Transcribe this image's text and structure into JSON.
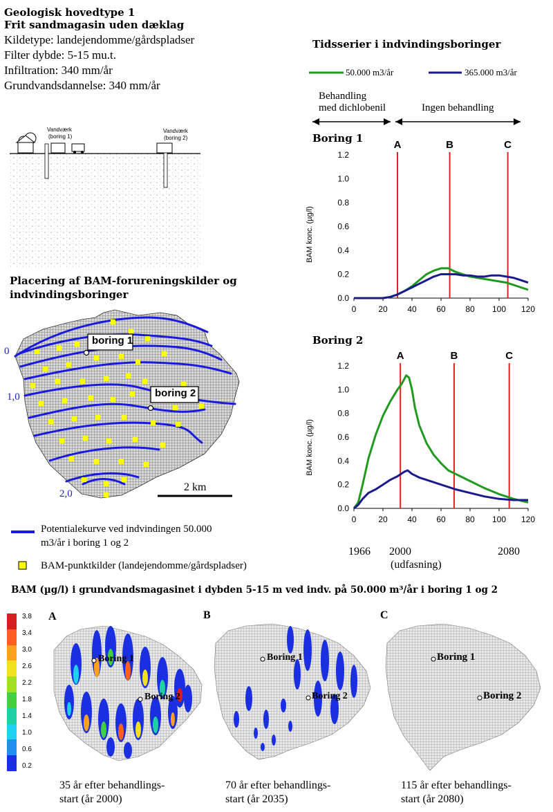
{
  "header": {
    "title1": "Geologisk hovedtype 1",
    "title2": "Frit sandmagasin uden dæklag",
    "line1": "Kildetype: landejendomme/gårdspladser",
    "line2": "Filter dybde: 5-15 mu.t.",
    "line3": "Infiltration: 340 mm/år",
    "line4": "Grundvandsdannelse: 340 mm/år"
  },
  "profile": {
    "well1_label": "Vandværk",
    "well1_sub": "(boring 1)",
    "well2_label": "Vandværk",
    "well2_sub": "(boring 2)"
  },
  "map": {
    "heading1": "Placering af BAM-forureningskilder og",
    "heading2": "indvindingsboringer",
    "boring1_label": "boring 1",
    "boring2_label": "boring 2",
    "contour_labels": [
      "0",
      "1,0",
      "2,0"
    ],
    "scale_label": "2 km",
    "legend_line": "Potentialekurve ved indvindingen 50.000",
    "legend_line2": "m3/år i boring 1 og 2",
    "legend_point": "BAM-punktkilder (landejendomme/gårdspladser)",
    "colors": {
      "contour": "#1a1adc",
      "source": "#ffff00",
      "grid": "#8a8a8a"
    }
  },
  "timeseries": {
    "heading": "Tidsserier i indvindingsboringer",
    "legend": [
      {
        "label": "50.000 m3/år",
        "color": "#1f9a1f"
      },
      {
        "label": "365.000 m3/år",
        "color": "#1a1a8c"
      }
    ],
    "phase1_line1": "Behandling",
    "phase1_line2": "med dichlobenil",
    "phase2": "Ingen behandling",
    "marker_color": "#e02020",
    "x_bottom": [
      "1966",
      "2000",
      "2080"
    ],
    "x_bottom_sub": "(udfasning)"
  },
  "chart_data": [
    {
      "type": "line",
      "title": "Boring 1",
      "ylabel": "BAM konc. (µg/l)",
      "xlim": [
        0,
        120
      ],
      "ylim": [
        0,
        1.2
      ],
      "xticks": [
        0,
        20,
        40,
        60,
        80,
        100,
        120
      ],
      "yticks": [
        0.0,
        0.2,
        0.4,
        0.6,
        0.8,
        1.0,
        1.2
      ],
      "ytick_labels": [
        "0.0",
        "0.2",
        "0.4",
        "0.6",
        "0.8",
        "1.0",
        "1.2"
      ],
      "markers": [
        {
          "label": "A",
          "x": 30
        },
        {
          "label": "B",
          "x": 66
        },
        {
          "label": "C",
          "x": 106
        }
      ],
      "series": [
        {
          "name": "50.000 m3/år",
          "color": "#1f9a1f",
          "x": [
            0,
            10,
            20,
            25,
            30,
            35,
            40,
            45,
            50,
            55,
            60,
            65,
            70,
            75,
            80,
            85,
            90,
            95,
            100,
            105,
            110,
            115,
            120
          ],
          "y": [
            0,
            0,
            0,
            0.01,
            0.03,
            0.06,
            0.1,
            0.15,
            0.2,
            0.23,
            0.25,
            0.25,
            0.22,
            0.2,
            0.18,
            0.17,
            0.16,
            0.15,
            0.14,
            0.13,
            0.11,
            0.09,
            0.07
          ]
        },
        {
          "name": "365.000 m3/år",
          "color": "#1a1a8c",
          "x": [
            0,
            10,
            20,
            25,
            30,
            35,
            40,
            45,
            50,
            55,
            60,
            65,
            70,
            75,
            80,
            85,
            90,
            95,
            100,
            105,
            110,
            115,
            120
          ],
          "y": [
            0,
            0,
            0,
            0.01,
            0.03,
            0.06,
            0.09,
            0.12,
            0.15,
            0.18,
            0.2,
            0.2,
            0.2,
            0.19,
            0.19,
            0.18,
            0.18,
            0.19,
            0.19,
            0.18,
            0.17,
            0.15,
            0.13
          ]
        }
      ]
    },
    {
      "type": "line",
      "title": "Boring 2",
      "ylabel": "BAM konc. (µg/l)",
      "xlim": [
        0,
        120
      ],
      "ylim": [
        0,
        1.2
      ],
      "xticks": [
        0,
        20,
        40,
        60,
        80,
        100,
        120
      ],
      "yticks": [
        0.0,
        0.2,
        0.4,
        0.6,
        0.8,
        1.0,
        1.2
      ],
      "ytick_labels": [
        "0.0",
        "0.2",
        "0.4",
        "0.6",
        "0.8",
        "1.0",
        "1.2"
      ],
      "markers": [
        {
          "label": "A",
          "x": 32
        },
        {
          "label": "B",
          "x": 69
        },
        {
          "label": "C",
          "x": 107
        }
      ],
      "series": [
        {
          "name": "50.000 m3/år",
          "color": "#1f9a1f",
          "x": [
            0,
            3,
            6,
            10,
            15,
            20,
            25,
            30,
            33,
            36,
            38,
            40,
            42,
            45,
            50,
            55,
            60,
            65,
            70,
            75,
            80,
            90,
            100,
            110,
            120
          ],
          "y": [
            0,
            0.05,
            0.2,
            0.42,
            0.62,
            0.78,
            0.9,
            1.0,
            1.05,
            1.12,
            1.1,
            1.0,
            0.85,
            0.7,
            0.55,
            0.45,
            0.38,
            0.32,
            0.29,
            0.26,
            0.23,
            0.17,
            0.12,
            0.08,
            0.05
          ]
        },
        {
          "name": "365.000 m3/år",
          "color": "#1a1a8c",
          "x": [
            0,
            3,
            6,
            10,
            15,
            20,
            25,
            30,
            35,
            37,
            40,
            45,
            50,
            55,
            60,
            70,
            80,
            90,
            100,
            110,
            120
          ],
          "y": [
            0,
            0.03,
            0.08,
            0.13,
            0.16,
            0.2,
            0.24,
            0.27,
            0.31,
            0.32,
            0.29,
            0.26,
            0.24,
            0.22,
            0.2,
            0.16,
            0.13,
            0.1,
            0.08,
            0.07,
            0.07
          ]
        }
      ]
    }
  ],
  "bottom": {
    "title": "BAM (µg/l) i grundvandsmagasinet i dybden 5-15 m ved indv. på 50.000 m³/år i boring 1 og 2",
    "colorbar_labels": [
      "3.8",
      "3.4",
      "3.0",
      "2.6",
      "2.2",
      "1.8",
      "1.4",
      "1.0",
      "0.6",
      "0.2"
    ],
    "colorbar_colors": [
      "#d42020",
      "#ff6020",
      "#ffa020",
      "#f0e020",
      "#a0e020",
      "#40d040",
      "#20d0a0",
      "#20d0f0",
      "#2090f0",
      "#1a30e0"
    ],
    "panels": [
      {
        "letter": "A",
        "caption1": "35 år efter behandlings-",
        "caption2": "start (år 2000)",
        "boring1": "Boring 1",
        "boring2": "Boring 2"
      },
      {
        "letter": "B",
        "caption1": "70 år efter behandlings-",
        "caption2": "start (år 2035)",
        "boring1": "Boring 1",
        "boring2": "Boring 2"
      },
      {
        "letter": "C",
        "caption1": "115 år efter behandlings-",
        "caption2": "start (år 2080)",
        "boring1": "Boring 1",
        "boring2": "Boring 2"
      }
    ]
  }
}
